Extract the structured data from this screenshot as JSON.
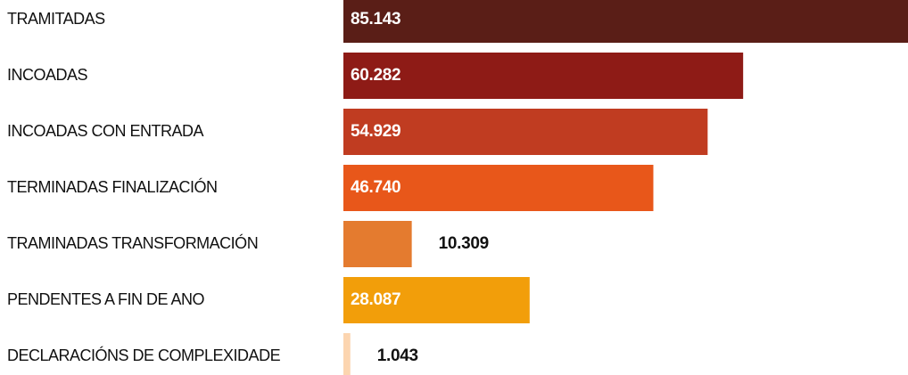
{
  "chart_data": {
    "type": "bar",
    "orientation": "horizontal",
    "categories": [
      "TRAMITADAS",
      "INCOADAS",
      "INCOADAS CON ENTRADA",
      "TERMINADAS FINALIZACIÓN",
      "TRAMINADAS TRANSFORMACIÓN",
      "PENDENTES A FIN DE ANO",
      "DECLARACIÓNS DE COMPLEXIDADE"
    ],
    "values": [
      85143,
      60282,
      54929,
      46740,
      10309,
      28087,
      1043
    ],
    "value_labels": [
      "85.143",
      "60.282",
      "54.929",
      "46.740",
      "10.309",
      "28.087",
      "1.043"
    ],
    "colors": [
      "#5a1e17",
      "#8e1b16",
      "#c03c21",
      "#e8571a",
      "#e47b2f",
      "#f29e0a",
      "#fcd5b0"
    ]
  }
}
